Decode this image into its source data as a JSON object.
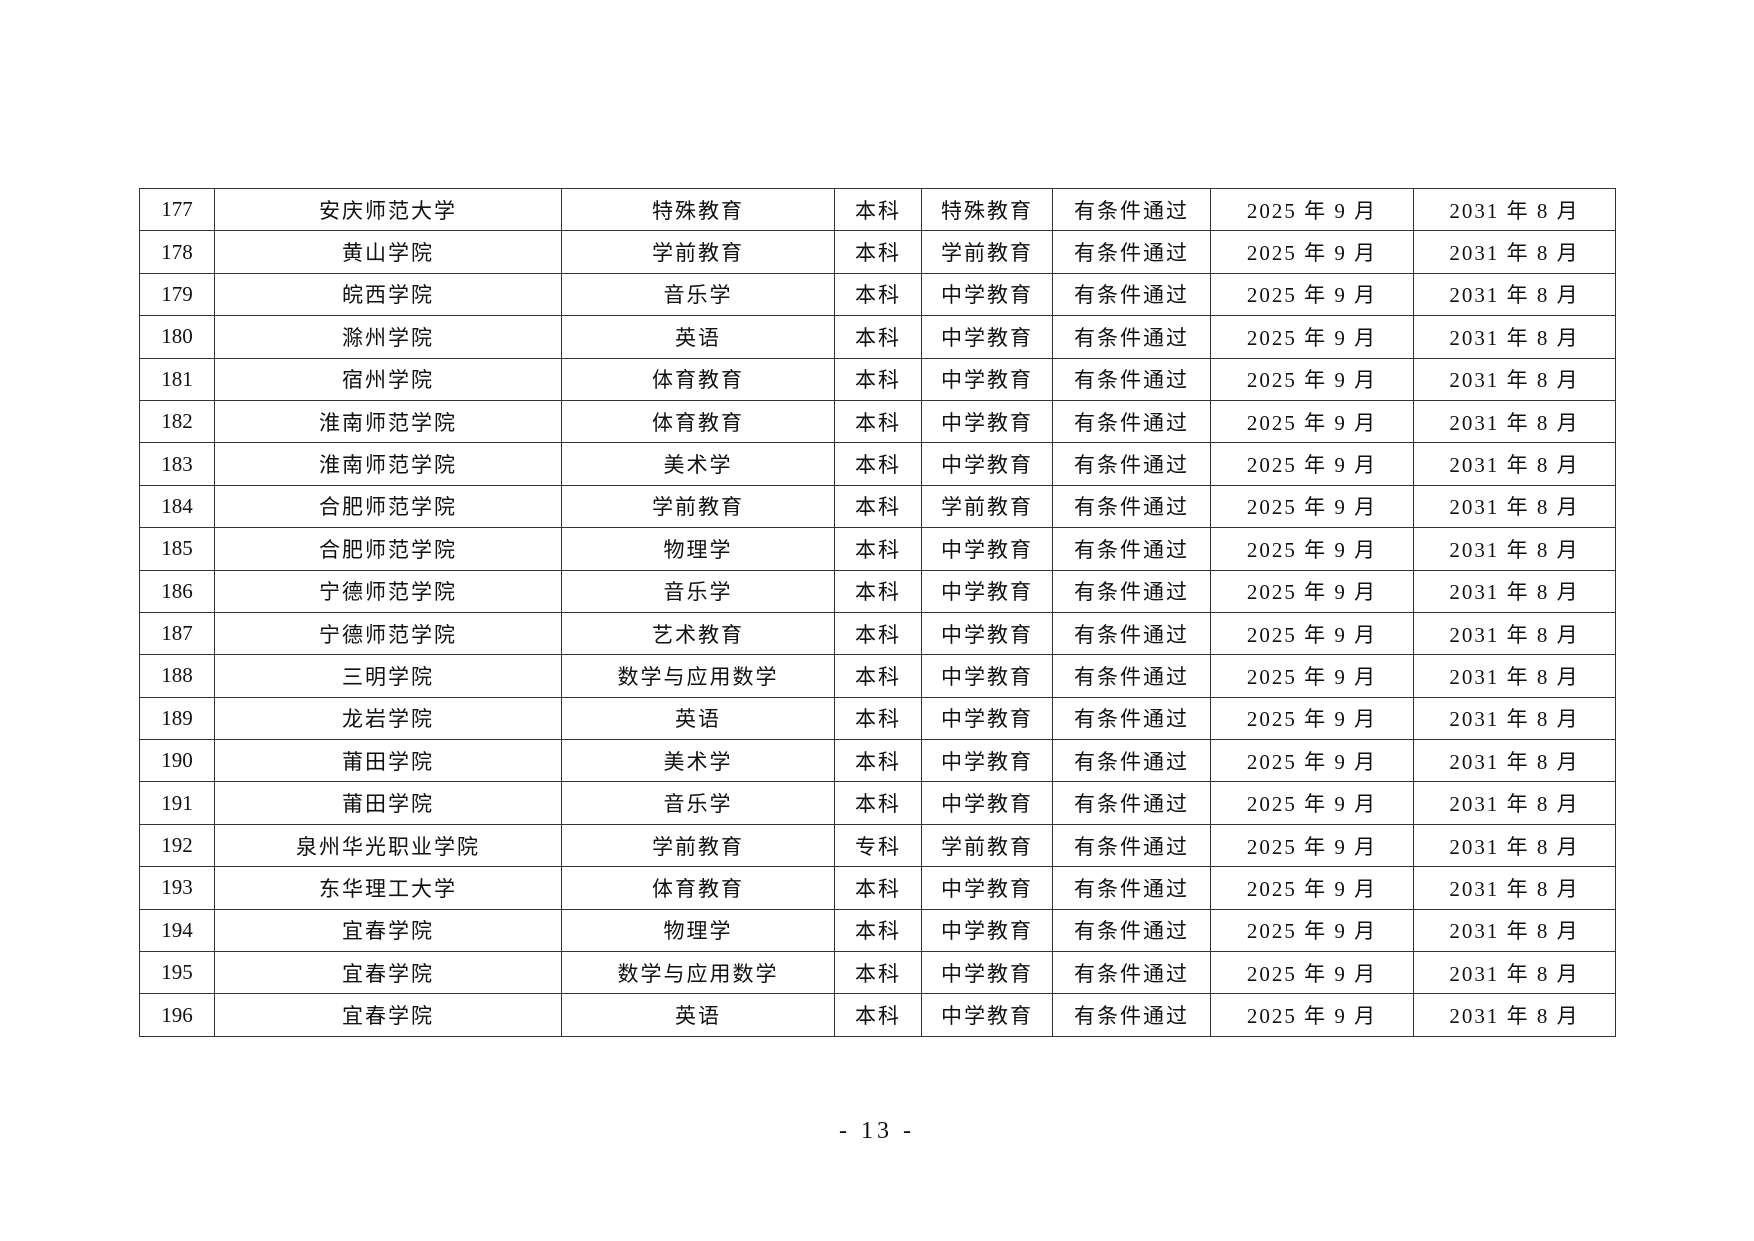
{
  "rows": [
    [
      "177",
      "安庆师范大学",
      "特殊教育",
      "本科",
      "特殊教育",
      "有条件通过",
      "2025 年 9 月",
      "2031 年 8 月"
    ],
    [
      "178",
      "黄山学院",
      "学前教育",
      "本科",
      "学前教育",
      "有条件通过",
      "2025 年 9 月",
      "2031 年 8 月"
    ],
    [
      "179",
      "皖西学院",
      "音乐学",
      "本科",
      "中学教育",
      "有条件通过",
      "2025 年 9 月",
      "2031 年 8 月"
    ],
    [
      "180",
      "滁州学院",
      "英语",
      "本科",
      "中学教育",
      "有条件通过",
      "2025 年 9 月",
      "2031 年 8 月"
    ],
    [
      "181",
      "宿州学院",
      "体育教育",
      "本科",
      "中学教育",
      "有条件通过",
      "2025 年 9 月",
      "2031 年 8 月"
    ],
    [
      "182",
      "淮南师范学院",
      "体育教育",
      "本科",
      "中学教育",
      "有条件通过",
      "2025 年 9 月",
      "2031 年 8 月"
    ],
    [
      "183",
      "淮南师范学院",
      "美术学",
      "本科",
      "中学教育",
      "有条件通过",
      "2025 年 9 月",
      "2031 年 8 月"
    ],
    [
      "184",
      "合肥师范学院",
      "学前教育",
      "本科",
      "学前教育",
      "有条件通过",
      "2025 年 9 月",
      "2031 年 8 月"
    ],
    [
      "185",
      "合肥师范学院",
      "物理学",
      "本科",
      "中学教育",
      "有条件通过",
      "2025 年 9 月",
      "2031 年 8 月"
    ],
    [
      "186",
      "宁德师范学院",
      "音乐学",
      "本科",
      "中学教育",
      "有条件通过",
      "2025 年 9 月",
      "2031 年 8 月"
    ],
    [
      "187",
      "宁德师范学院",
      "艺术教育",
      "本科",
      "中学教育",
      "有条件通过",
      "2025 年 9 月",
      "2031 年 8 月"
    ],
    [
      "188",
      "三明学院",
      "数学与应用数学",
      "本科",
      "中学教育",
      "有条件通过",
      "2025 年 9 月",
      "2031 年 8 月"
    ],
    [
      "189",
      "龙岩学院",
      "英语",
      "本科",
      "中学教育",
      "有条件通过",
      "2025 年 9 月",
      "2031 年 8 月"
    ],
    [
      "190",
      "莆田学院",
      "美术学",
      "本科",
      "中学教育",
      "有条件通过",
      "2025 年 9 月",
      "2031 年 8 月"
    ],
    [
      "191",
      "莆田学院",
      "音乐学",
      "本科",
      "中学教育",
      "有条件通过",
      "2025 年 9 月",
      "2031 年 8 月"
    ],
    [
      "192",
      "泉州华光职业学院",
      "学前教育",
      "专科",
      "学前教育",
      "有条件通过",
      "2025 年 9 月",
      "2031 年 8 月"
    ],
    [
      "193",
      "东华理工大学",
      "体育教育",
      "本科",
      "中学教育",
      "有条件通过",
      "2025 年 9 月",
      "2031 年 8 月"
    ],
    [
      "194",
      "宜春学院",
      "物理学",
      "本科",
      "中学教育",
      "有条件通过",
      "2025 年 9 月",
      "2031 年 8 月"
    ],
    [
      "195",
      "宜春学院",
      "数学与应用数学",
      "本科",
      "中学教育",
      "有条件通过",
      "2025 年 9 月",
      "2031 年 8 月"
    ],
    [
      "196",
      "宜春学院",
      "英语",
      "本科",
      "中学教育",
      "有条件通过",
      "2025 年 9 月",
      "2031 年 8 月"
    ]
  ],
  "page_number": "- 13 -"
}
